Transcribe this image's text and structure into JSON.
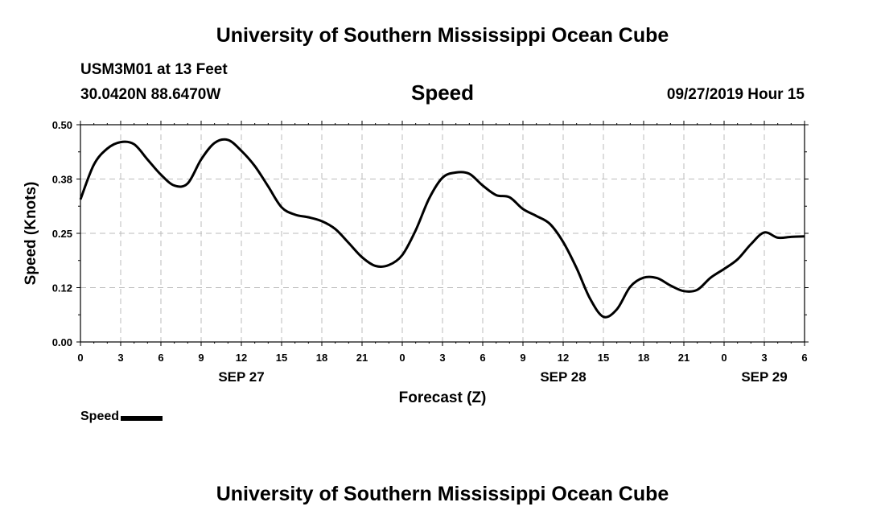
{
  "header": {
    "title": "University of Southern Mississippi Ocean Cube",
    "station": "USM3M01 at 13 Feet",
    "coords": "30.0420N 88.6470W",
    "variable": "Speed",
    "datetime": "09/27/2019 Hour 15"
  },
  "footer": {
    "title": "University of Southern Mississippi Ocean Cube"
  },
  "legend": {
    "label": "Speed"
  },
  "chart_data": {
    "type": "line",
    "title": "Speed",
    "xlabel": "Forecast (Z)",
    "ylabel": "Speed (Knots)",
    "ylim": [
      0,
      0.5
    ],
    "xlim": [
      0,
      54
    ],
    "grid": true,
    "legend_position": "bottom-left",
    "x_tick_labels": [
      "0",
      "3",
      "6",
      "9",
      "12",
      "15",
      "18",
      "21",
      "0",
      "3",
      "6",
      "9",
      "12",
      "15",
      "18",
      "21",
      "0",
      "3",
      "6"
    ],
    "x_tick_hours": [
      0,
      3,
      6,
      9,
      12,
      15,
      18,
      21,
      24,
      27,
      30,
      33,
      36,
      39,
      42,
      45,
      48,
      51,
      54
    ],
    "y_ticks": [
      0.0,
      0.125,
      0.25,
      0.375,
      0.5
    ],
    "y_tick_labels": [
      "0.00",
      "0.12",
      "0.25",
      "0.38",
      "0.50"
    ],
    "date_labels": [
      {
        "label": "SEP 27",
        "hour": 12
      },
      {
        "label": "SEP 28",
        "hour": 36
      },
      {
        "label": "SEP 29",
        "hour": 51
      }
    ],
    "series": [
      {
        "name": "Speed",
        "color": "#000000",
        "x": [
          0,
          1,
          2,
          3,
          4,
          5,
          6,
          7,
          8,
          9,
          10,
          11,
          12,
          13,
          14,
          15,
          16,
          17,
          18,
          19,
          20,
          21,
          22,
          23,
          24,
          25,
          26,
          27,
          28,
          29,
          30,
          31,
          32,
          33,
          34,
          35,
          36,
          37,
          38,
          39,
          40,
          41,
          42,
          43,
          44,
          45,
          46,
          47,
          48,
          49,
          50,
          51,
          52,
          53,
          54
        ],
        "values": [
          0.328,
          0.408,
          0.445,
          0.46,
          0.455,
          0.42,
          0.385,
          0.36,
          0.365,
          0.42,
          0.458,
          0.465,
          0.44,
          0.405,
          0.358,
          0.31,
          0.293,
          0.287,
          0.278,
          0.26,
          0.228,
          0.195,
          0.175,
          0.177,
          0.2,
          0.257,
          0.33,
          0.378,
          0.39,
          0.387,
          0.36,
          0.338,
          0.333,
          0.306,
          0.29,
          0.272,
          0.23,
          0.17,
          0.1,
          0.058,
          0.075,
          0.127,
          0.148,
          0.147,
          0.13,
          0.117,
          0.12,
          0.148,
          0.168,
          0.19,
          0.225,
          0.252,
          0.24,
          0.242,
          0.243
        ]
      }
    ]
  }
}
